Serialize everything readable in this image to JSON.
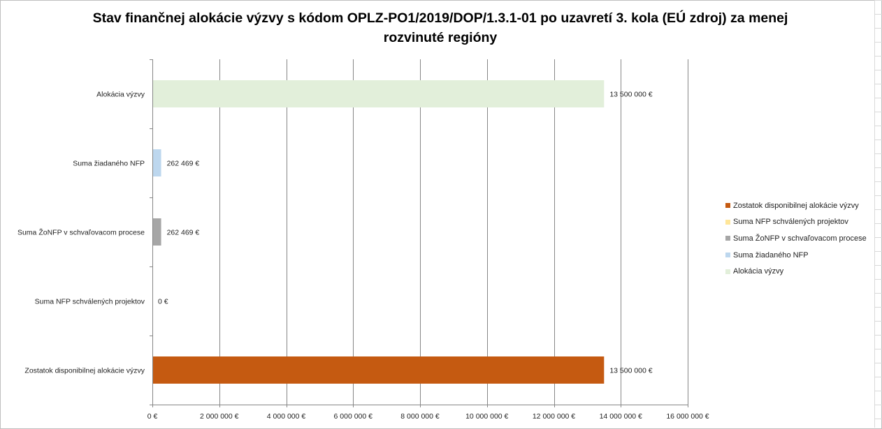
{
  "chart_data": {
    "type": "bar",
    "orientation": "horizontal",
    "title": "Stav finančnej alokácie výzvy s kódom OPLZ-PO1/2019/DOP/1.3.1-01 po uzavretí 3. kola (EÚ zdroj) za menej rozvinuté regióny",
    "categories": [
      "Alokácia výzvy",
      "Suma žiadaného NFP",
      "Suma ŽoNFP v schvaľovacom procese",
      "Suma NFP schválených projektov",
      "Zostatok disponibilnej alokácie výzvy"
    ],
    "values": [
      13500000,
      262469,
      262469,
      0,
      13500000
    ],
    "value_labels": [
      "13 500 000 €",
      "262 469 €",
      "262 469 €",
      "0 €",
      "13 500 000 €"
    ],
    "colors": [
      "#e2efda",
      "#bdd7ee",
      "#a6a6a6",
      "#ffe699",
      "#c55a11"
    ],
    "xlim": [
      0,
      16000000
    ],
    "xticks": [
      0,
      2000000,
      4000000,
      6000000,
      8000000,
      10000000,
      12000000,
      14000000,
      16000000
    ],
    "xtick_labels": [
      "0 €",
      "2 000 000 €",
      "4 000 000 €",
      "6 000 000 €",
      "8 000 000 €",
      "10 000 000 €",
      "12 000 000 €",
      "14 000 000 €",
      "16 000 000 €"
    ],
    "grid": true,
    "legend_position": "right",
    "legend": [
      {
        "label": "Zostatok disponibilnej alokácie výzvy",
        "color": "#c55a11"
      },
      {
        "label": "Suma NFP schválených projektov",
        "color": "#ffe699"
      },
      {
        "label": "Suma ŽoNFP v schvaľovacom procese",
        "color": "#a6a6a6"
      },
      {
        "label": "Suma žiadaného NFP",
        "color": "#bdd7ee"
      },
      {
        "label": "Alokácia výzvy",
        "color": "#e2efda"
      }
    ]
  }
}
